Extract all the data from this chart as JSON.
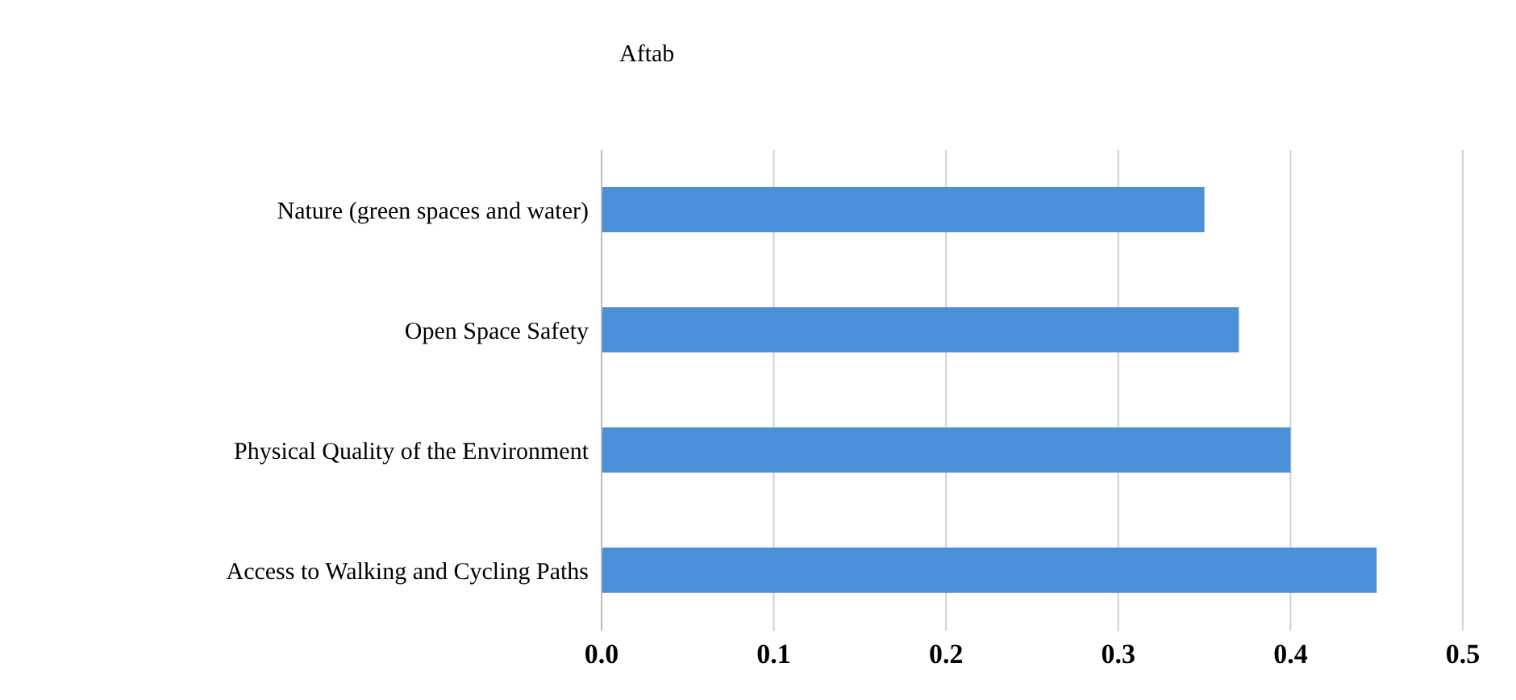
{
  "chart_data": {
    "type": "bar",
    "orientation": "horizontal",
    "title": "Aftab",
    "categories": [
      "Nature (green spaces and water)",
      "Open Space Safety",
      "Physical Quality of the Environment",
      "Access to Walking and Cycling Paths"
    ],
    "values": [
      0.35,
      0.37,
      0.4,
      0.45
    ],
    "color": "#4a90d9",
    "xlim": [
      0,
      0.5
    ],
    "xticks": [
      {
        "value": 0,
        "label": "0.0"
      },
      0.1,
      0.2,
      0.3,
      0.4,
      0.5
    ],
    "grid": "x"
  }
}
